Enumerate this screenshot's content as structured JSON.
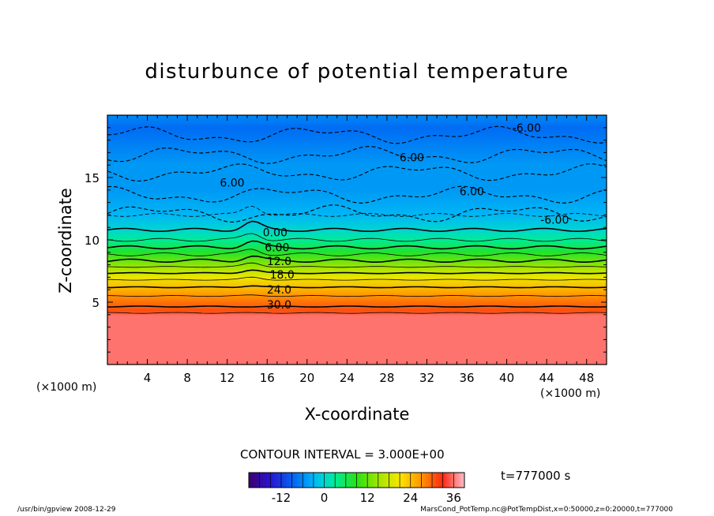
{
  "chart_data": {
    "type": "heatmap",
    "title": "disturbunce of potential temperature",
    "xlabel": "X-coordinate",
    "ylabel": "Z-coordinate",
    "x_unit_label": "(×1000 m)",
    "xlim": [
      0,
      50
    ],
    "ylim": [
      0,
      20
    ],
    "x_ticks": [
      4,
      8,
      12,
      16,
      20,
      24,
      28,
      32,
      36,
      40,
      44,
      48
    ],
    "y_ticks": [
      5,
      10,
      15
    ],
    "contour_interval_label": "CONTOUR INTERVAL = 3.000E+00",
    "contour_labels": [
      {
        "text": "-6.00",
        "x": 42,
        "y": 19.0
      },
      {
        "text": "6.00",
        "x": 30.5,
        "y": 16.6
      },
      {
        "text": "6.00",
        "x": 12.5,
        "y": 14.6
      },
      {
        "text": "6.00",
        "x": 36.5,
        "y": 13.9
      },
      {
        "text": "-6.00",
        "x": 44.8,
        "y": 11.6
      },
      {
        "text": "0.00",
        "x": 16.8,
        "y": 10.6
      },
      {
        "text": "6.00",
        "x": 17.0,
        "y": 9.4
      },
      {
        "text": "12.0",
        "x": 17.2,
        "y": 8.3
      },
      {
        "text": "18.0",
        "x": 17.5,
        "y": 7.2
      },
      {
        "text": "24.0",
        "x": 17.2,
        "y": 6.0
      },
      {
        "text": "30.0",
        "x": 17.2,
        "y": 4.8
      }
    ],
    "profile": {
      "z": [
        0,
        3.9,
        4.3,
        5.0,
        6.0,
        7.0,
        8.0,
        9.0,
        10.0,
        10.8,
        12.0,
        14.0,
        16.0,
        18.0,
        19.0,
        20.0
      ],
      "value": [
        36,
        36,
        31,
        29,
        25,
        20,
        14,
        8,
        3,
        0,
        -3,
        -5,
        -5,
        -7,
        -8,
        -6
      ]
    },
    "colorbar": {
      "min": -21,
      "max": 39,
      "ticks": [
        -12,
        0,
        12,
        24,
        36
      ]
    },
    "time_label": "t=777000 s"
  },
  "footer": {
    "left": "/usr/bin/gpview   2008-12-29",
    "right": "MarsCond_PotTemp.nc@PotTempDist,x=0:50000,z=0:20000,t=777000"
  }
}
